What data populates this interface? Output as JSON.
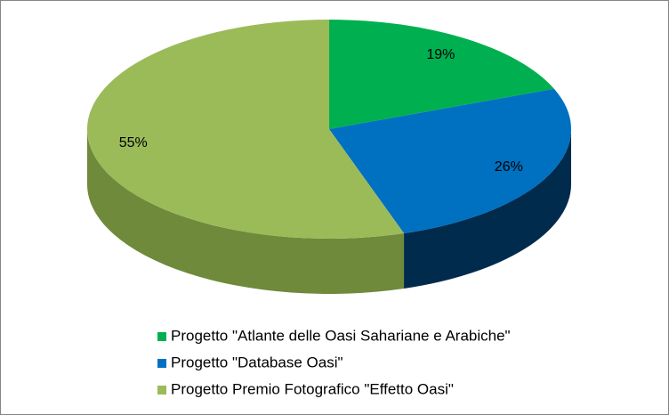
{
  "chart_data": {
    "type": "pie",
    "categories": [
      "Progetto \"Atlante delle Oasi Sahariane e Arabiche\"",
      "Progetto \"Database Oasi\"",
      "Progetto Premio Fotografico \"Effetto Oasi\""
    ],
    "values": [
      19,
      26,
      55
    ],
    "value_labels": [
      "19%",
      "26%",
      "55%"
    ],
    "colors": [
      "#00b050",
      "#0070c0",
      "#9bbb59"
    ],
    "side_colors": [
      "#007a38",
      "#002b4d",
      "#6e8a3a"
    ],
    "legend": "bottom"
  }
}
